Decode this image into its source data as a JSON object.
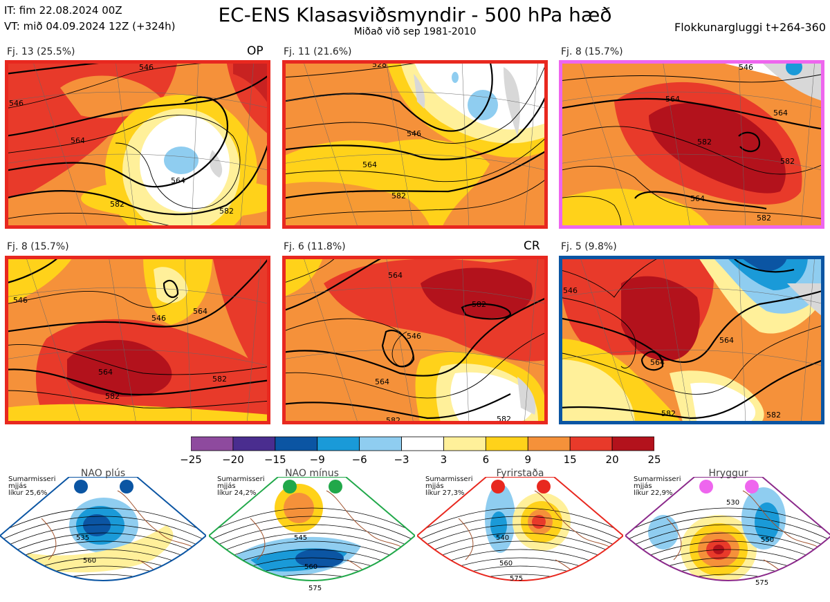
{
  "header": {
    "issue_time": "IT: fim 22.08.2024 00Z",
    "valid_time": "VT: mið 04.09.2024 12Z  (+324h)",
    "title": "EC-ENS Klasasviðsmyndir - 500 hPa hæð",
    "subtitle": "Miðað við sep 1981-2010",
    "cluster_window": "Flokkunargluggi t+264-360"
  },
  "panels": [
    {
      "label": "Fj. 13 (25.5%)",
      "tag": "OP",
      "border_color": "#e8281f",
      "contours": [
        "546",
        "564",
        "564",
        "582",
        "582",
        "546"
      ]
    },
    {
      "label": "Fj. 11 (21.6%)",
      "tag": "",
      "border_color": "#e8281f",
      "contours": [
        "546",
        "564",
        "582",
        "528"
      ]
    },
    {
      "label": "Fj. 8 (15.7%)",
      "tag": "",
      "border_color": "#ee66ee",
      "contours": [
        "564",
        "564",
        "582",
        "582",
        "564",
        "546",
        "582"
      ]
    },
    {
      "label": "Fj. 8 (15.7%)",
      "tag": "",
      "border_color": "#e8281f",
      "contours": [
        "546",
        "564",
        "564",
        "582",
        "582",
        "546"
      ]
    },
    {
      "label": "Fj. 6 (11.8%)",
      "tag": "CR",
      "border_color": "#e8281f",
      "contours": [
        "564",
        "546",
        "564",
        "582",
        "582",
        "582"
      ]
    },
    {
      "label": "Fj. 5 (9.8%)",
      "tag": "",
      "border_color": "#0b55a3",
      "contours": [
        "546",
        "564",
        "564",
        "582",
        "582"
      ]
    }
  ],
  "colorbar": {
    "ticks": [
      "−25",
      "−20",
      "−15",
      "−9",
      "−6",
      "−3",
      "3",
      "6",
      "9",
      "15",
      "20",
      "25"
    ],
    "colors": [
      "#8e4a9e",
      "#4a2d8f",
      "#0b55a3",
      "#1a9ad8",
      "#8fcdf0",
      "#ffffff",
      "#fff09a",
      "#ffd21a",
      "#f5913a",
      "#e83a2a",
      "#b3121c"
    ]
  },
  "regimes": [
    {
      "season": "Sumarmisseri",
      "ref": "mjjás",
      "prob": "líkur 25,6%",
      "name": "NAO plús",
      "dot_color": "#0b55a3",
      "line_color": "#0b55a3",
      "contours": [
        "535",
        "560"
      ]
    },
    {
      "season": "Sumarmisseri",
      "ref": "mjjás",
      "prob": "líkur 24,2%",
      "name": "NAO mínus",
      "dot_color": "#21a84a",
      "line_color": "#21a84a",
      "contours": [
        "545",
        "560",
        "575"
      ]
    },
    {
      "season": "Sumarmisseri",
      "ref": "mjjás",
      "prob": "líkur 27,3%",
      "name": "Fyrirstaða",
      "dot_color": "#e8281f",
      "line_color": "#e8281f",
      "contours": [
        "540",
        "560",
        "575"
      ]
    },
    {
      "season": "Sumarmisseri",
      "ref": "mjjás",
      "prob": "líkur 22,9%",
      "name": "Hryggur",
      "dot_color": "#ee66ee",
      "line_color": "#8b2a8b",
      "contours": [
        "530",
        "550",
        "575"
      ]
    }
  ]
}
